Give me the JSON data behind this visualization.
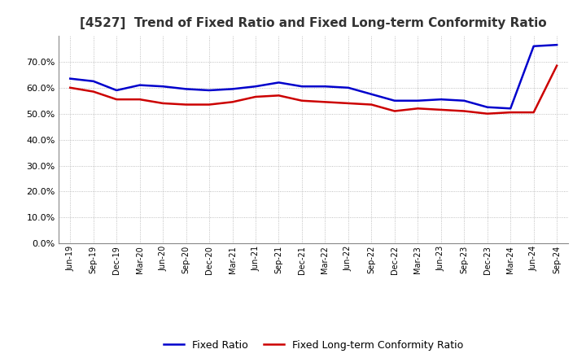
{
  "title": "[4527]  Trend of Fixed Ratio and Fixed Long-term Conformity Ratio",
  "title_fontsize": 11,
  "x_labels": [
    "Jun-19",
    "Sep-19",
    "Dec-19",
    "Mar-20",
    "Jun-20",
    "Sep-20",
    "Dec-20",
    "Mar-21",
    "Jun-21",
    "Sep-21",
    "Dec-21",
    "Mar-22",
    "Jun-22",
    "Sep-22",
    "Dec-22",
    "Mar-23",
    "Jun-23",
    "Sep-23",
    "Dec-23",
    "Mar-24",
    "Jun-24",
    "Sep-24"
  ],
  "fixed_ratio": [
    63.5,
    62.5,
    59.0,
    61.0,
    60.5,
    59.5,
    59.0,
    59.5,
    60.5,
    62.0,
    60.5,
    60.5,
    60.0,
    57.5,
    55.0,
    55.0,
    55.5,
    55.0,
    52.5,
    52.0,
    76.0,
    76.5
  ],
  "fixed_lt_ratio": [
    60.0,
    58.5,
    55.5,
    55.5,
    54.0,
    53.5,
    53.5,
    54.5,
    56.5,
    57.0,
    55.0,
    54.5,
    54.0,
    53.5,
    51.0,
    52.0,
    51.5,
    51.0,
    50.0,
    50.5,
    50.5,
    68.5
  ],
  "fixed_ratio_color": "#0000cc",
  "fixed_lt_ratio_color": "#cc0000",
  "ylim": [
    0,
    80
  ],
  "yticks": [
    0,
    10,
    20,
    30,
    40,
    50,
    60,
    70
  ],
  "ytick_labels": [
    "0.0%",
    "10.0%",
    "20.0%",
    "30.0%",
    "40.0%",
    "50.0%",
    "60.0%",
    "70.0%"
  ],
  "background_color": "#ffffff",
  "grid_color": "#999999",
  "legend_fixed_ratio": "Fixed Ratio",
  "legend_fixed_lt_ratio": "Fixed Long-term Conformity Ratio",
  "line_width": 1.8
}
